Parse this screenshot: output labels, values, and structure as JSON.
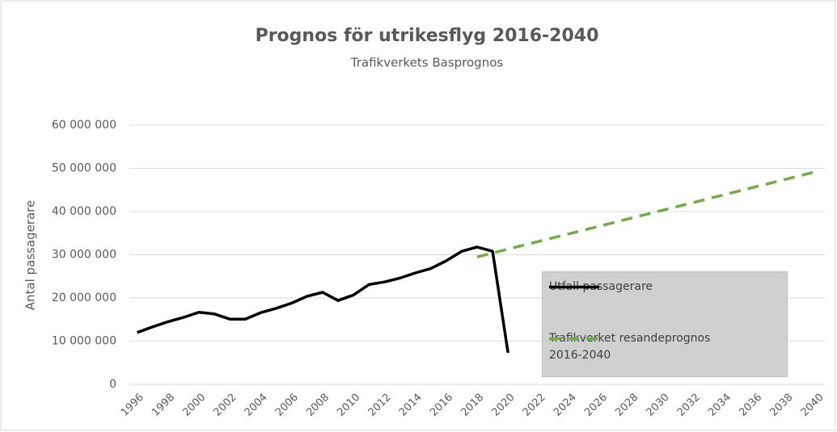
{
  "chart_data": {
    "type": "line",
    "title": "Prognos för utrikesflyg 2016-2040",
    "subtitle": "Trafikverkets Basprognos",
    "y_label": "Antal passagerare",
    "categories": [
      "1996",
      null,
      "1998",
      null,
      "2000",
      null,
      "2002",
      null,
      "2004",
      null,
      "2006",
      null,
      "2008",
      null,
      "2010",
      null,
      "2012",
      null,
      "2014",
      null,
      "2016",
      null,
      "2018",
      null,
      "2020",
      null,
      "2022",
      null,
      "2024",
      null,
      "2026",
      null,
      "2028",
      null,
      "2030",
      null,
      "2032",
      null,
      "2034",
      null,
      "2036",
      null,
      "2038",
      null,
      "2040"
    ],
    "series": [
      {
        "name": "Utfall passagerare",
        "color": "#000000",
        "dash": false,
        "values": [
          12000000,
          13300000,
          14500000,
          15500000,
          16700000,
          16300000,
          15100000,
          15100000,
          16600000,
          17600000,
          18800000,
          20400000,
          21300000,
          19400000,
          20700000,
          23100000,
          23700000,
          24600000,
          25800000,
          26800000,
          28600000,
          30800000,
          31800000,
          30800000,
          7300000,
          null,
          null,
          null,
          null,
          null,
          null,
          null,
          null,
          null,
          null,
          null,
          null,
          null,
          null,
          null,
          null,
          null,
          null,
          null,
          null
        ]
      },
      {
        "name": "Trafikverket resandeprognos 2016-2040",
        "color": "#70ad47",
        "dash": true,
        "values": [
          null,
          null,
          null,
          null,
          null,
          null,
          null,
          null,
          null,
          null,
          null,
          null,
          null,
          null,
          null,
          null,
          null,
          null,
          null,
          null,
          null,
          null,
          29500000,
          30400000,
          31300000,
          32200000,
          33100000,
          34000000,
          34900000,
          35800000,
          36700000,
          37600000,
          38500000,
          39400000,
          40300000,
          41200000,
          42100000,
          43000000,
          43900000,
          44800000,
          45700000,
          46600000,
          47500000,
          48400000,
          49300000
        ]
      }
    ],
    "ylim": [
      0,
      60000000
    ],
    "yticks": [
      0,
      {
        "value": 10000000,
        "label": "10 000 000"
      },
      {
        "value": 20000000,
        "label": "20 000 000"
      },
      {
        "value": 30000000,
        "label": "30 000 000"
      },
      {
        "value": 40000000,
        "label": "40 000 000"
      },
      {
        "value": 50000000,
        "label": "50 000 000"
      },
      {
        "value": 60000000,
        "label": "60 000 000"
      }
    ],
    "grid": true,
    "legend": "right"
  }
}
